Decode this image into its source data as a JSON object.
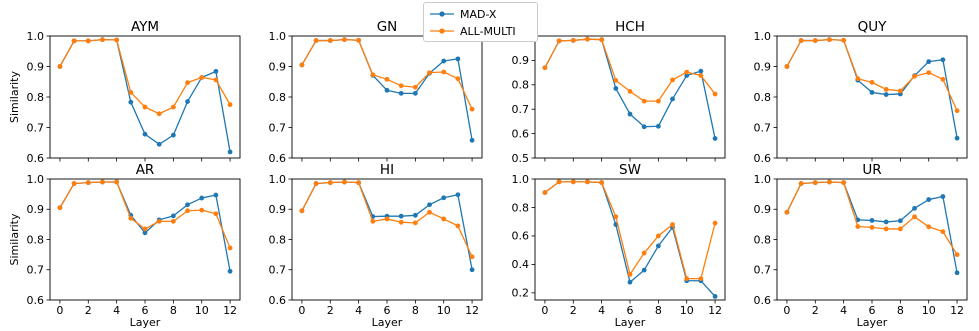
{
  "figure": {
    "legend_placement": "top-center"
  },
  "legend": [
    {
      "name": "MAD-X",
      "color": "#1f77b4"
    },
    {
      "name": "ALL-MULTI",
      "color": "#ff7f0e"
    }
  ],
  "chart_data": [
    {
      "type": "line",
      "title": "AYM",
      "xlabel": "",
      "ylabel": "Similarity",
      "xlim": [
        0,
        12
      ],
      "ylim": [
        0.6,
        1.0
      ],
      "yticks": [
        0.6,
        0.7,
        0.8,
        0.9,
        1.0
      ],
      "y_tick_labels": [
        "0.6",
        "0.7",
        "0.8",
        "0.9",
        "1.0"
      ],
      "xticks": [
        0,
        2,
        4,
        6,
        8,
        10,
        12
      ],
      "x_tick_labels": [],
      "x": [
        0,
        1,
        2,
        3,
        4,
        5,
        6,
        7,
        8,
        9,
        10,
        11,
        12
      ],
      "series": [
        {
          "name": "MAD-X",
          "values": [
            0.9,
            0.984,
            0.984,
            0.988,
            0.987,
            0.783,
            0.678,
            0.645,
            0.675,
            0.785,
            0.864,
            0.884,
            0.62
          ]
        },
        {
          "name": "ALL-MULTI",
          "values": [
            0.9,
            0.984,
            0.984,
            0.988,
            0.987,
            0.815,
            0.767,
            0.745,
            0.767,
            0.847,
            0.864,
            0.856,
            0.775
          ]
        }
      ]
    },
    {
      "type": "line",
      "title": "GN",
      "xlabel": "",
      "ylabel": "",
      "xlim": [
        0,
        12
      ],
      "ylim": [
        0.6,
        1.0
      ],
      "yticks": [
        0.6,
        0.7,
        0.8,
        0.9,
        1.0
      ],
      "y_tick_labels": [
        "0.6",
        "0.7",
        "0.8",
        "0.9",
        "1.0"
      ],
      "xticks": [
        0,
        2,
        4,
        6,
        8,
        10,
        12
      ],
      "x_tick_labels": [],
      "x": [
        0,
        1,
        2,
        3,
        4,
        5,
        6,
        7,
        8,
        9,
        10,
        11,
        12
      ],
      "series": [
        {
          "name": "MAD-X",
          "values": [
            0.905,
            0.985,
            0.985,
            0.988,
            0.986,
            0.871,
            0.822,
            0.812,
            0.812,
            0.878,
            0.918,
            0.925,
            0.658
          ]
        },
        {
          "name": "ALL-MULTI",
          "values": [
            0.905,
            0.985,
            0.985,
            0.988,
            0.986,
            0.873,
            0.858,
            0.837,
            0.832,
            0.88,
            0.882,
            0.86,
            0.76
          ]
        }
      ]
    },
    {
      "type": "line",
      "title": "HCH",
      "xlabel": "",
      "ylabel": "",
      "xlim": [
        0,
        12
      ],
      "ylim": [
        0.5,
        1.0
      ],
      "yticks": [
        0.5,
        0.6,
        0.7,
        0.8,
        0.9,
        1.0
      ],
      "y_tick_labels": [
        "0.5",
        "0.6",
        "0.7",
        "0.8",
        "0.9",
        "1.0"
      ],
      "xticks": [
        0,
        2,
        4,
        6,
        8,
        10,
        12
      ],
      "x_tick_labels": [],
      "x": [
        0,
        1,
        2,
        3,
        4,
        5,
        6,
        7,
        8,
        9,
        10,
        11,
        12
      ],
      "series": [
        {
          "name": "MAD-X",
          "values": [
            0.87,
            0.98,
            0.982,
            0.987,
            0.985,
            0.785,
            0.68,
            0.628,
            0.63,
            0.742,
            0.838,
            0.856,
            0.58
          ]
        },
        {
          "name": "ALL-MULTI",
          "values": [
            0.87,
            0.98,
            0.982,
            0.987,
            0.985,
            0.818,
            0.773,
            0.733,
            0.733,
            0.82,
            0.852,
            0.838,
            0.762
          ]
        }
      ]
    },
    {
      "type": "line",
      "title": "QUY",
      "xlabel": "",
      "ylabel": "",
      "xlim": [
        0,
        12
      ],
      "ylim": [
        0.6,
        1.0
      ],
      "yticks": [
        0.6,
        0.7,
        0.8,
        0.9,
        1.0
      ],
      "y_tick_labels": [
        "0.6",
        "0.7",
        "0.8",
        "0.9",
        "1.0"
      ],
      "xticks": [
        0,
        2,
        4,
        6,
        8,
        10,
        12
      ],
      "x_tick_labels": [],
      "x": [
        0,
        1,
        2,
        3,
        4,
        5,
        6,
        7,
        8,
        9,
        10,
        11,
        12
      ],
      "series": [
        {
          "name": "MAD-X",
          "values": [
            0.9,
            0.985,
            0.985,
            0.988,
            0.986,
            0.855,
            0.815,
            0.808,
            0.81,
            0.87,
            0.916,
            0.922,
            0.665
          ]
        },
        {
          "name": "ALL-MULTI",
          "values": [
            0.9,
            0.985,
            0.985,
            0.988,
            0.986,
            0.86,
            0.848,
            0.825,
            0.82,
            0.868,
            0.88,
            0.858,
            0.755
          ]
        }
      ]
    },
    {
      "type": "line",
      "title": "AR",
      "xlabel": "Layer",
      "ylabel": "Similarity",
      "xlim": [
        0,
        12
      ],
      "ylim": [
        0.6,
        1.0
      ],
      "yticks": [
        0.6,
        0.7,
        0.8,
        0.9,
        1.0
      ],
      "y_tick_labels": [
        "0.6",
        "0.7",
        "0.8",
        "0.9",
        "1.0"
      ],
      "xticks": [
        0,
        2,
        4,
        6,
        8,
        10,
        12
      ],
      "x_tick_labels": [
        "0",
        "2",
        "4",
        "6",
        "8",
        "10",
        "12"
      ],
      "x": [
        0,
        1,
        2,
        3,
        4,
        5,
        6,
        7,
        8,
        9,
        10,
        11,
        12
      ],
      "series": [
        {
          "name": "MAD-X",
          "values": [
            0.905,
            0.985,
            0.988,
            0.99,
            0.99,
            0.88,
            0.822,
            0.865,
            0.878,
            0.915,
            0.937,
            0.947,
            0.695
          ]
        },
        {
          "name": "ALL-MULTI",
          "values": [
            0.905,
            0.985,
            0.988,
            0.99,
            0.99,
            0.87,
            0.835,
            0.86,
            0.86,
            0.895,
            0.897,
            0.885,
            0.772
          ]
        }
      ]
    },
    {
      "type": "line",
      "title": "HI",
      "xlabel": "Layer",
      "ylabel": "",
      "xlim": [
        0,
        12
      ],
      "ylim": [
        0.6,
        1.0
      ],
      "yticks": [
        0.6,
        0.7,
        0.8,
        0.9,
        1.0
      ],
      "y_tick_labels": [
        "0.6",
        "0.7",
        "0.8",
        "0.9",
        "1.0"
      ],
      "xticks": [
        0,
        2,
        4,
        6,
        8,
        10,
        12
      ],
      "x_tick_labels": [
        "0",
        "2",
        "4",
        "6",
        "8",
        "10",
        "12"
      ],
      "x": [
        0,
        1,
        2,
        3,
        4,
        5,
        6,
        7,
        8,
        9,
        10,
        11,
        12
      ],
      "series": [
        {
          "name": "MAD-X",
          "values": [
            0.895,
            0.985,
            0.988,
            0.99,
            0.988,
            0.876,
            0.877,
            0.877,
            0.88,
            0.915,
            0.938,
            0.948,
            0.7
          ]
        },
        {
          "name": "ALL-MULTI",
          "values": [
            0.895,
            0.985,
            0.988,
            0.99,
            0.988,
            0.86,
            0.868,
            0.857,
            0.855,
            0.89,
            0.868,
            0.845,
            0.743
          ]
        }
      ]
    },
    {
      "type": "line",
      "title": "SW",
      "xlabel": "Layer",
      "ylabel": "",
      "xlim": [
        0,
        12
      ],
      "ylim": [
        0.15,
        1.0
      ],
      "yticks": [
        0.2,
        0.4,
        0.6,
        0.8,
        1.0
      ],
      "y_tick_labels": [
        "0.2",
        "0.4",
        "0.6",
        "0.8",
        "1.0"
      ],
      "xticks": [
        0,
        2,
        4,
        6,
        8,
        10,
        12
      ],
      "x_tick_labels": [
        "0",
        "2",
        "4",
        "6",
        "8",
        "10",
        "12"
      ],
      "x": [
        0,
        1,
        2,
        3,
        4,
        5,
        6,
        7,
        8,
        9,
        10,
        11,
        12
      ],
      "series": [
        {
          "name": "MAD-X",
          "values": [
            0.905,
            0.98,
            0.98,
            0.98,
            0.975,
            0.68,
            0.275,
            0.36,
            0.53,
            0.66,
            0.285,
            0.285,
            0.175
          ]
        },
        {
          "name": "ALL-MULTI",
          "values": [
            0.905,
            0.98,
            0.98,
            0.98,
            0.975,
            0.735,
            0.33,
            0.48,
            0.6,
            0.68,
            0.3,
            0.3,
            0.69
          ]
        }
      ]
    },
    {
      "type": "line",
      "title": "UR",
      "xlabel": "Layer",
      "ylabel": "",
      "xlim": [
        0,
        12
      ],
      "ylim": [
        0.6,
        1.0
      ],
      "yticks": [
        0.6,
        0.7,
        0.8,
        0.9,
        1.0
      ],
      "y_tick_labels": [
        "0.6",
        "0.7",
        "0.8",
        "0.9",
        "1.0"
      ],
      "xticks": [
        0,
        2,
        4,
        6,
        8,
        10,
        12
      ],
      "x_tick_labels": [
        "0",
        "2",
        "4",
        "6",
        "8",
        "10",
        "12"
      ],
      "x": [
        0,
        1,
        2,
        3,
        4,
        5,
        6,
        7,
        8,
        9,
        10,
        11,
        12
      ],
      "series": [
        {
          "name": "MAD-X",
          "values": [
            0.89,
            0.985,
            0.988,
            0.99,
            0.988,
            0.865,
            0.863,
            0.858,
            0.862,
            0.903,
            0.932,
            0.942,
            0.69
          ]
        },
        {
          "name": "ALL-MULTI",
          "values": [
            0.89,
            0.985,
            0.988,
            0.99,
            0.988,
            0.843,
            0.84,
            0.835,
            0.835,
            0.875,
            0.842,
            0.826,
            0.75
          ]
        }
      ]
    }
  ]
}
